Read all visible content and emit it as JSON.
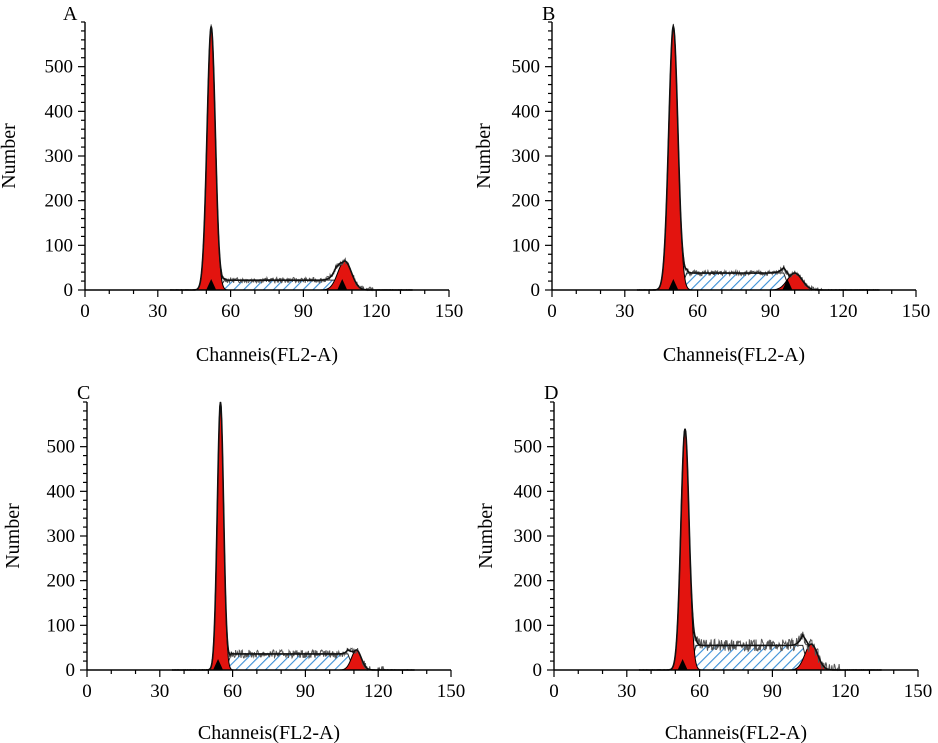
{
  "figure": {
    "colors": {
      "g_peak": "#e3140f",
      "s_phase_hatch": "#3a8fd6",
      "fit_line": "#111111",
      "raw_line": "#555555"
    }
  },
  "chart_data": [
    {
      "type": "area",
      "panel": "A",
      "xlabel": "Channeis(FL2-A)",
      "ylabel": "Number",
      "xlim": [
        0,
        150
      ],
      "ylim": [
        0,
        600
      ],
      "xticks": [
        0,
        30,
        60,
        90,
        120,
        150
      ],
      "yticks": [
        0,
        100,
        200,
        300,
        400,
        500
      ],
      "g1": {
        "center": 52,
        "sigma": 1.7,
        "height": 590
      },
      "g2": {
        "center": 107,
        "sigma": 2.8,
        "height": 65
      },
      "s_phase": {
        "start": 56,
        "end": 105,
        "level": 22
      },
      "markers": [
        52,
        106
      ],
      "noise": 6
    },
    {
      "type": "area",
      "panel": "B",
      "xlabel": "Channeis(FL2-A)",
      "ylabel": "Number",
      "xlim": [
        0,
        150
      ],
      "ylim": [
        0,
        600
      ],
      "xticks": [
        0,
        30,
        60,
        90,
        120,
        150
      ],
      "yticks": [
        0,
        100,
        200,
        300,
        400,
        500
      ],
      "g1": {
        "center": 50,
        "sigma": 1.9,
        "height": 590
      },
      "g2": {
        "center": 100,
        "sigma": 3.0,
        "height": 38
      },
      "s_phase": {
        "start": 54,
        "end": 97,
        "level": 38
      },
      "markers": [
        50,
        97
      ],
      "noise": 6
    },
    {
      "type": "area",
      "panel": "C",
      "xlabel": "Channeis(FL2-A)",
      "ylabel": "Number",
      "xlim": [
        0,
        150
      ],
      "ylim": [
        0,
        600
      ],
      "xticks": [
        0,
        30,
        60,
        90,
        120,
        150
      ],
      "yticks": [
        0,
        100,
        200,
        300,
        400,
        500
      ],
      "g1": {
        "center": 55,
        "sigma": 1.3,
        "height": 600
      },
      "g2": {
        "center": 111,
        "sigma": 2.0,
        "height": 45
      },
      "s_phase": {
        "start": 58,
        "end": 109,
        "level": 36
      },
      "markers": [
        54
      ],
      "noise": 9
    },
    {
      "type": "area",
      "panel": "D",
      "xlabel": "Channeis(FL2-A)",
      "ylabel": "Number",
      "xlim": [
        0,
        150
      ],
      "ylim": [
        0,
        600
      ],
      "xticks": [
        0,
        30,
        60,
        90,
        120,
        150
      ],
      "yticks": [
        0,
        100,
        200,
        300,
        400,
        500
      ],
      "g1": {
        "center": 54,
        "sigma": 1.7,
        "height": 540
      },
      "g2": {
        "center": 106,
        "sigma": 2.6,
        "height": 58
      },
      "s_phase": {
        "start": 57,
        "end": 104,
        "level": 55
      },
      "markers": [
        53
      ],
      "noise": 14
    }
  ]
}
